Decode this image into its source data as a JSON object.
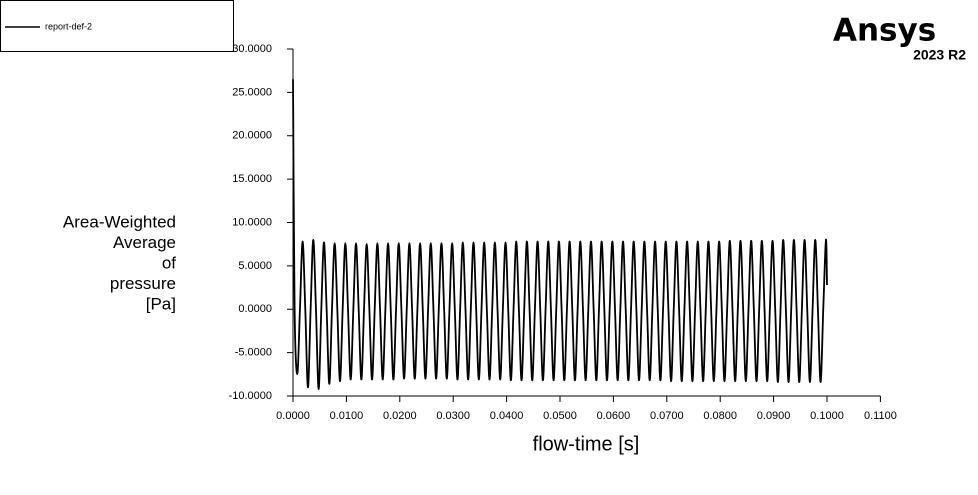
{
  "chart_data": {
    "type": "line",
    "brand": "Ansys",
    "version": "2023 R2",
    "xlabel": "flow-time [s]",
    "ylabel": [
      "Area-Weighted",
      "Average",
      "of",
      "pressure",
      "[Pa]"
    ],
    "legend": "upper left",
    "grid": false,
    "xlim": [
      0,
      0.11
    ],
    "ylim": [
      -10,
      30
    ],
    "xticks": [
      {
        "value": 0,
        "label": "0.0000"
      },
      {
        "value": 0.01,
        "label": "0.0100"
      },
      {
        "value": 0.02,
        "label": "0.0200"
      },
      {
        "value": 0.03,
        "label": "0.0300"
      },
      {
        "value": 0.04,
        "label": "0.0400"
      },
      {
        "value": 0.05,
        "label": "0.0500"
      },
      {
        "value": 0.06,
        "label": "0.0600"
      },
      {
        "value": 0.07,
        "label": "0.0700"
      },
      {
        "value": 0.08,
        "label": "0.0800"
      },
      {
        "value": 0.09,
        "label": "0.0900"
      },
      {
        "value": 0.1,
        "label": "0.1000"
      },
      {
        "value": 0.11,
        "label": "0.1100"
      }
    ],
    "yticks": [
      {
        "value": -10,
        "label": "-10.0000"
      },
      {
        "value": -5,
        "label": "-5.0000"
      },
      {
        "value": 0,
        "label": "0.0000"
      },
      {
        "value": 5,
        "label": "5.0000"
      },
      {
        "value": 10,
        "label": "10.0000"
      },
      {
        "value": 15,
        "label": "15.0000"
      },
      {
        "value": 20,
        "label": "20.0000"
      },
      {
        "value": 25,
        "label": "25.0000"
      },
      {
        "value": 30,
        "label": "30.0000"
      }
    ],
    "x": [
      0,
      0.0003,
      0.0008,
      0.0013,
      0.0018,
      0.0023,
      0.0028,
      0.0033,
      0.0038,
      0.0043,
      0.0048,
      0.0053,
      0.0058,
      0.0063,
      0.0068,
      0.0073,
      0.0078,
      0.0083,
      0.0088,
      0.0093,
      0.0098,
      0.0103,
      0.0108,
      0.0113,
      0.0118,
      0.0123,
      0.0128,
      0.0133,
      0.0138,
      0.0143,
      0.0148,
      0.0153,
      0.0158,
      0.0163,
      0.0168,
      0.0173,
      0.0178,
      0.0183,
      0.0188,
      0.0193,
      0.0198,
      0.0203,
      0.0208,
      0.0213,
      0.0218,
      0.0223,
      0.0228,
      0.0233,
      0.0238,
      0.0243,
      0.0248,
      0.0253,
      0.0258,
      0.0263,
      0.0268,
      0.0273,
      0.0278,
      0.0283,
      0.0288,
      0.0293,
      0.0298,
      0.0303,
      0.0308,
      0.0313,
      0.0318,
      0.0323,
      0.0328,
      0.0333,
      0.0338,
      0.0343,
      0.0348,
      0.0353,
      0.0358,
      0.0363,
      0.0368,
      0.0373,
      0.0378,
      0.0383,
      0.0388,
      0.0393,
      0.0398,
      0.0403,
      0.0408,
      0.0413,
      0.0418,
      0.0423,
      0.0428,
      0.0433,
      0.0438,
      0.0443,
      0.0448,
      0.0453,
      0.0458,
      0.0463,
      0.0468,
      0.0473,
      0.0478,
      0.0483,
      0.0488,
      0.0493,
      0.0498,
      0.0503,
      0.0508,
      0.0513,
      0.0518,
      0.0523,
      0.0528,
      0.0533,
      0.0538,
      0.0543,
      0.0548,
      0.0553,
      0.0558,
      0.0563,
      0.0568,
      0.0573,
      0.0578,
      0.0583,
      0.0588,
      0.0593,
      0.0598,
      0.0603,
      0.0608,
      0.0613,
      0.0618,
      0.0623,
      0.0628,
      0.0633,
      0.0638,
      0.0643,
      0.0648,
      0.0653,
      0.0658,
      0.0663,
      0.0668,
      0.0673,
      0.0678,
      0.0683,
      0.0688,
      0.0693,
      0.0698,
      0.0703,
      0.0708,
      0.0713,
      0.0718,
      0.0723,
      0.0728,
      0.0733,
      0.0738,
      0.0743,
      0.0748,
      0.0753,
      0.0758,
      0.0763,
      0.0768,
      0.0773,
      0.0778,
      0.0783,
      0.0788,
      0.0793,
      0.0798,
      0.0803,
      0.0808,
      0.0813,
      0.0818,
      0.0823,
      0.0828,
      0.0833,
      0.0838,
      0.0843,
      0.0848,
      0.0853,
      0.0858,
      0.0863,
      0.0868,
      0.0873,
      0.0878,
      0.0883,
      0.0888,
      0.0893,
      0.0898,
      0.0903,
      0.0908,
      0.0913,
      0.0918,
      0.0923,
      0.0928,
      0.0933,
      0.0938,
      0.0943,
      0.0948,
      0.0953,
      0.0958,
      0.0963,
      0.0968,
      0.0973,
      0.0978,
      0.0983,
      0.0988,
      0.0993,
      0.0998,
      0.1
    ],
    "series": [
      {
        "name": "report-def-2",
        "color": "#000000",
        "values": [
          26.5,
          0,
          -7.5,
          0,
          7.8,
          0,
          -9.0,
          0,
          8.0,
          0,
          -9.2,
          0,
          7.7,
          0,
          -8.6,
          0,
          7.6,
          0,
          -8.3,
          0,
          7.6,
          0,
          -8.1,
          0,
          7.6,
          0,
          -8.1,
          0,
          7.5,
          0,
          -8.1,
          0,
          7.6,
          0,
          -8.1,
          0,
          7.6,
          0,
          -8.1,
          0,
          7.6,
          0,
          -8.0,
          0,
          7.6,
          0,
          -8.0,
          0,
          7.6,
          0,
          -8.0,
          0,
          7.6,
          0,
          -8.0,
          0,
          7.6,
          0,
          -8.0,
          0,
          7.6,
          0,
          -8.1,
          0,
          7.7,
          0,
          -8.1,
          0,
          7.7,
          0,
          -8.1,
          0,
          7.7,
          0,
          -8.1,
          0,
          7.7,
          0,
          -8.1,
          0,
          7.7,
          0,
          -8.2,
          0,
          7.8,
          0,
          -8.2,
          0,
          7.8,
          0,
          -8.2,
          0,
          7.8,
          0,
          -8.2,
          0,
          7.8,
          0,
          -8.2,
          0,
          7.8,
          0,
          -8.2,
          0,
          7.8,
          0,
          -8.2,
          0,
          7.8,
          0,
          -8.2,
          0,
          7.8,
          0,
          -8.2,
          0,
          7.8,
          0,
          -8.2,
          0,
          7.8,
          0,
          -8.2,
          0,
          7.8,
          0,
          -8.2,
          0,
          7.8,
          0,
          -8.2,
          0,
          7.8,
          0,
          -8.2,
          0,
          7.8,
          0,
          -8.2,
          0,
          7.8,
          0,
          -8.3,
          0,
          7.8,
          0,
          -8.3,
          0,
          7.8,
          0,
          -8.3,
          0,
          7.8,
          0,
          -8.3,
          0,
          7.8,
          0,
          -8.3,
          0,
          7.8,
          0,
          -8.3,
          0,
          7.9,
          0,
          -8.3,
          0,
          7.9,
          0,
          -8.3,
          0,
          7.9,
          0,
          -8.3,
          0,
          7.9,
          0,
          -8.3,
          0,
          7.9,
          0,
          -8.4,
          0,
          8.0,
          0,
          -8.4,
          0,
          8.0,
          0,
          -8.4,
          0,
          8.0,
          0,
          -8.4,
          0,
          8.0,
          0,
          -8.4,
          0,
          8.0,
          2.8
        ]
      }
    ]
  }
}
